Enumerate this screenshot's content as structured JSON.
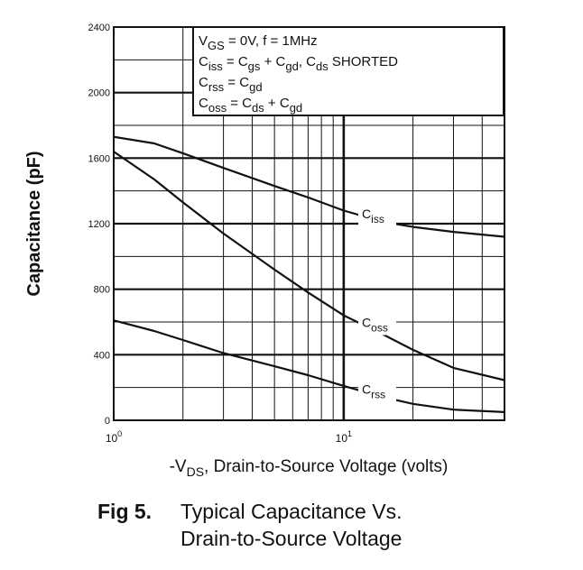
{
  "chart_data": {
    "type": "line",
    "xscale": "log",
    "xlim": [
      1,
      50
    ],
    "ylim": [
      0,
      2400
    ],
    "yticks": [
      0,
      400,
      800,
      1200,
      1600,
      2000,
      2400
    ],
    "ytick_labels": [
      "0",
      "400",
      "800",
      "1200",
      "1600",
      "2000",
      "2400"
    ],
    "xtick_labels": [
      {
        "base": "10",
        "exp": "0",
        "value": 1
      },
      {
        "base": "10",
        "exp": "1",
        "value": 10
      }
    ],
    "ylabel": "Capacitance (pF)",
    "xlabel": {
      "prefix": "-V",
      "sub": "DS",
      "rest": ", Drain-to-Source Voltage (volts)"
    },
    "grid": true,
    "series": [
      {
        "name": {
          "base": "C",
          "sub": "iss"
        },
        "x": [
          1,
          1.5,
          2,
          3,
          5,
          7,
          10,
          15,
          20,
          30,
          50
        ],
        "y": [
          1730,
          1690,
          1630,
          1540,
          1430,
          1360,
          1280,
          1210,
          1180,
          1150,
          1120
        ]
      },
      {
        "name": {
          "base": "C",
          "sub": "oss"
        },
        "x": [
          1,
          1.5,
          2,
          3,
          5,
          7,
          10,
          15,
          20,
          30,
          50
        ],
        "y": [
          1640,
          1470,
          1330,
          1140,
          920,
          780,
          640,
          520,
          430,
          320,
          245
        ]
      },
      {
        "name": {
          "base": "C",
          "sub": "rss"
        },
        "x": [
          1,
          1.5,
          2,
          3,
          5,
          7,
          10,
          15,
          20,
          30,
          50
        ],
        "y": [
          610,
          545,
          490,
          410,
          330,
          275,
          210,
          140,
          100,
          65,
          50
        ]
      }
    ],
    "conditions_box": [
      {
        "base": "V",
        "sub": "GS",
        "rest": " = 0V,  f = 1MHz"
      },
      {
        "base": "C",
        "sub": "iss",
        "rest": " = C",
        "sub2": "gs",
        "rest2": " + C",
        "sub3": "gd",
        "rest3": ",  C",
        "sub4": "ds",
        "rest4": " SHORTED"
      },
      {
        "base": "C",
        "sub": "rss",
        "rest": " = C",
        "sub2": "gd"
      },
      {
        "base": "C",
        "sub": "oss",
        "rest": " = C",
        "sub2": "ds",
        "rest2": " + C",
        "sub3": "gd"
      }
    ]
  },
  "caption": {
    "number": "Fig 5.",
    "line1": "Typical Capacitance Vs.",
    "line2": "Drain-to-Source Voltage"
  }
}
